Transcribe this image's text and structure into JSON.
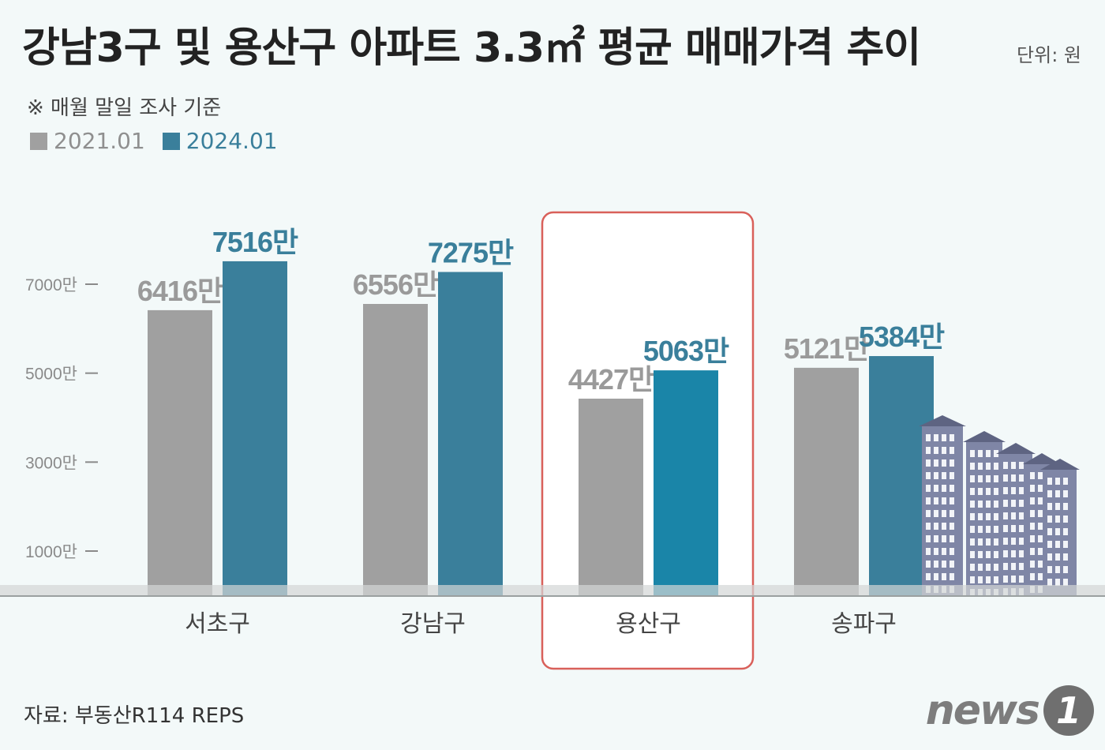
{
  "header": {
    "title": "강남3구 및 용산구 아파트 3.3㎡ 평균 매매가격 추이",
    "unit": "단위: 원",
    "note": "※ 매월 말일 조사 기준"
  },
  "legend": {
    "items": [
      {
        "label": "2021.01",
        "color": "#a0a0a0"
      },
      {
        "label": "2024.01",
        "color": "#3a7f9b"
      }
    ]
  },
  "footer": {
    "source": "자료: 부동산R114 REPS",
    "logo_text": "news",
    "logo_badge": "1"
  },
  "chart_data": {
    "type": "bar",
    "categories": [
      "서초구",
      "강남구",
      "용산구",
      "송파구"
    ],
    "series": [
      {
        "name": "2021.01",
        "values": [
          6416,
          6556,
          4427,
          5121
        ],
        "labels": [
          "6416만",
          "6556만",
          "4427만",
          "5121만"
        ],
        "color": "#a0a0a0"
      },
      {
        "name": "2024.01",
        "values": [
          7516,
          7275,
          5063,
          5384
        ],
        "labels": [
          "7516만",
          "7275만",
          "5063만",
          "5384만"
        ],
        "color": "#3a7f9b"
      }
    ],
    "yticks": [
      {
        "value": 1000,
        "label": "1000만"
      },
      {
        "value": 3000,
        "label": "3000만"
      },
      {
        "value": 5000,
        "label": "5000만"
      },
      {
        "value": 7000,
        "label": "7000만"
      }
    ],
    "highlight_category": "용산구",
    "highlight_color": "#1a85a8",
    "highlight_box_color": "#d9605a"
  }
}
